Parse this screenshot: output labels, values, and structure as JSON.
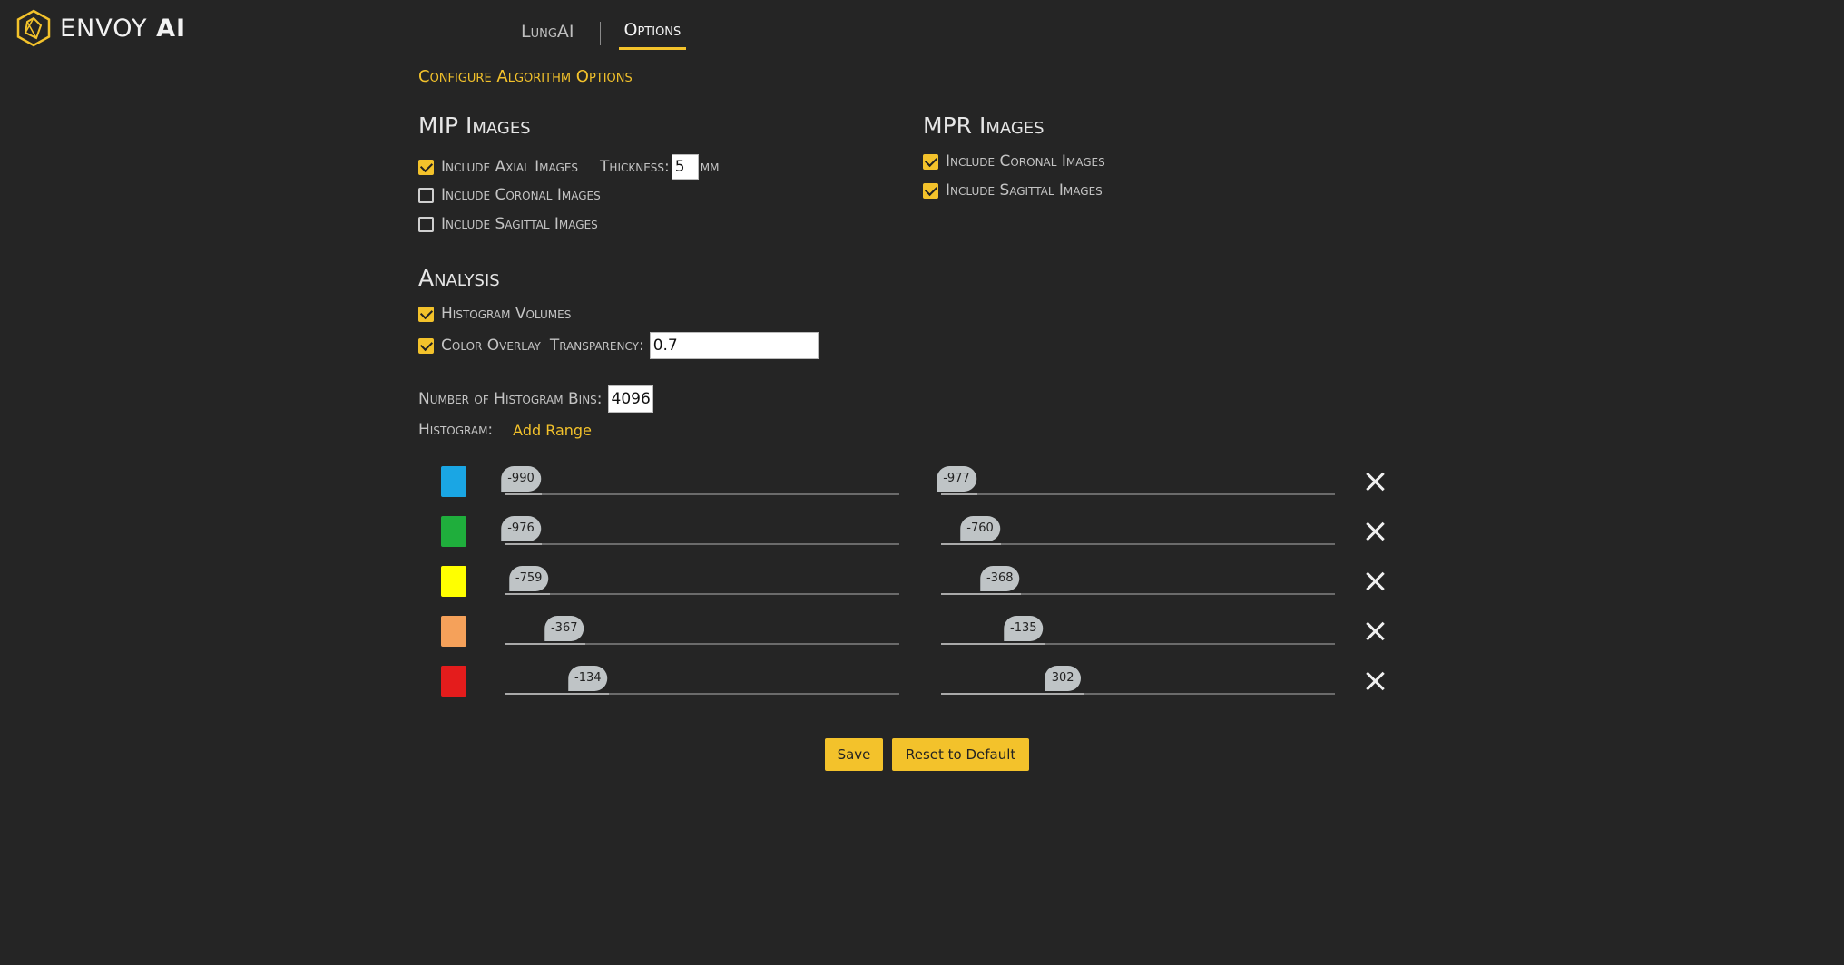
{
  "brand": {
    "name": "ENVOY",
    "suffix": "AI"
  },
  "nav": {
    "tabs": [
      {
        "label": "LungAI"
      },
      {
        "label": "Options"
      }
    ]
  },
  "section_title": "Configure Algorithm Options",
  "mip": {
    "heading": "MIP Images",
    "axial_label": "Include Axial Images",
    "axial_checked": true,
    "thickness_label": "Thickness:",
    "thickness_value": "5",
    "thickness_unit": "mm",
    "coronal_label": "Include Coronal Images",
    "coronal_checked": false,
    "sagittal_label": "Include Sagittal Images",
    "sagittal_checked": false
  },
  "mpr": {
    "heading": "MPR Images",
    "coronal_label": "Include Coronal Images",
    "coronal_checked": true,
    "sagittal_label": "Include Sagittal Images",
    "sagittal_checked": true
  },
  "analysis": {
    "heading": "Analysis",
    "histogram_label": "Histogram Volumes",
    "histogram_checked": true,
    "overlay_label": "Color Overlay",
    "overlay_checked": true,
    "transparency_label": "Transparency:",
    "transparency_value": "0.7"
  },
  "bins": {
    "label": "Number of Histogram Bins:",
    "value": "4096"
  },
  "histogram": {
    "label": "Histogram:",
    "add_range": "Add Range"
  },
  "ranges": [
    {
      "color": "#1aa6e4",
      "min": "-990",
      "min_pos": 0.0,
      "max": "-977",
      "max_pos": 0.0
    },
    {
      "color": "#1fae3c",
      "min": "-976",
      "min_pos": 0.0,
      "max": "-760",
      "max_pos": 0.06
    },
    {
      "color": "#ffff00",
      "min": "-759",
      "min_pos": 0.02,
      "max": "-368",
      "max_pos": 0.11
    },
    {
      "color": "#f5a15a",
      "min": "-367",
      "min_pos": 0.11,
      "max": "-135",
      "max_pos": 0.17
    },
    {
      "color": "#e41c1c",
      "min": "-134",
      "min_pos": 0.17,
      "max": "302",
      "max_pos": 0.27
    }
  ],
  "buttons": {
    "save": "Save",
    "reset": "Reset to Default"
  }
}
